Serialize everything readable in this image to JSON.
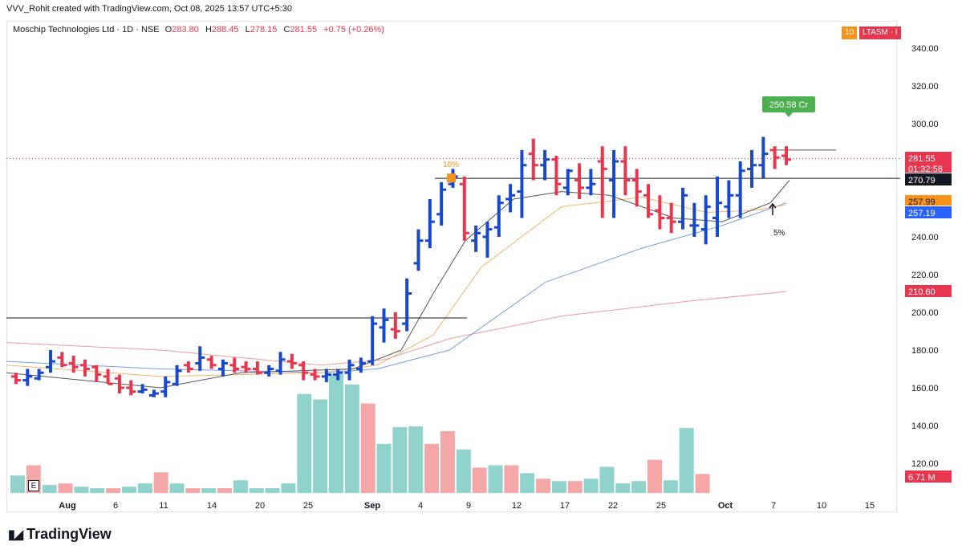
{
  "header": {
    "credit": "VVV_Rohit created with TradingView.com, Oct 08, 2025 13:57 UTC+5:30"
  },
  "legend": {
    "symbol": "Moschip Technologies Ltd · 1D · NSE",
    "o_label": "O",
    "o": "283.80",
    "h_label": "H",
    "h": "288.45",
    "l_label": "L",
    "l": "278.15",
    "c_label": "C",
    "c": "281.55",
    "change": "+0.75 (+0.26%)"
  },
  "indicator_badges": [
    {
      "text": "10",
      "color": "#f7931a"
    },
    {
      "text": "LTASM - I",
      "color": "#e8364f"
    }
  ],
  "brand": "TradingView",
  "e_marker": "E",
  "colors": {
    "up": "#1848cc",
    "down": "#e8364f",
    "vol_up": "#8fd3cc",
    "vol_down": "#f5a6a6",
    "ema_short": "#555555",
    "ema_orange": "#f5b46b",
    "ema_blue": "#7a9ce6",
    "ema_red": "#f09a9a"
  },
  "chart_data": {
    "type": "ohlc",
    "y_ticks": [
      120,
      140,
      160,
      180,
      200,
      220,
      240,
      260,
      280,
      300,
      320,
      340
    ],
    "y_tick_labels": [
      "120.00",
      "140.00",
      "160.00",
      "180.00",
      "200.00",
      "220.00",
      "240.00",
      "260.00",
      "280.00",
      "300.00",
      "320.00",
      "340.00"
    ],
    "ylim": [
      112,
      350
    ],
    "x_labels": [
      {
        "text": "Aug",
        "bar": 3,
        "bold": true
      },
      {
        "text": "6",
        "bar": 6
      },
      {
        "text": "11",
        "bar": 9
      },
      {
        "text": "14",
        "bar": 12
      },
      {
        "text": "20",
        "bar": 15
      },
      {
        "text": "25",
        "bar": 18
      },
      {
        "text": "Sep",
        "bar": 22,
        "bold": true
      },
      {
        "text": "4",
        "bar": 25
      },
      {
        "text": "9",
        "bar": 28
      },
      {
        "text": "12",
        "bar": 31
      },
      {
        "text": "17",
        "bar": 34
      },
      {
        "text": "22",
        "bar": 37
      },
      {
        "text": "25",
        "bar": 40
      },
      {
        "text": "Oct",
        "bar": 44,
        "bold": true
      },
      {
        "text": "7",
        "bar": 47
      },
      {
        "text": "10",
        "bar": 50
      },
      {
        "text": "15",
        "bar": 53
      }
    ],
    "bars": [
      [
        166,
        168,
        162,
        164
      ],
      [
        164,
        170,
        161,
        166
      ],
      [
        165,
        170,
        164,
        168
      ],
      [
        171,
        180,
        168,
        174
      ],
      [
        176,
        179,
        171,
        172
      ],
      [
        173,
        177,
        168,
        171
      ],
      [
        172,
        175,
        166,
        170
      ],
      [
        171,
        172,
        163,
        167
      ],
      [
        166,
        170,
        162,
        162
      ],
      [
        165,
        167,
        157,
        160
      ],
      [
        160,
        164,
        156,
        158
      ],
      [
        158,
        162,
        157,
        159
      ],
      [
        156,
        159,
        155,
        157
      ],
      [
        158,
        166,
        155,
        163
      ],
      [
        162,
        172,
        161,
        169
      ],
      [
        172,
        174,
        168,
        170
      ],
      [
        173,
        182,
        169,
        176
      ],
      [
        175,
        177,
        170,
        172
      ],
      [
        170,
        175,
        166,
        173
      ],
      [
        172,
        176,
        168,
        170
      ],
      [
        171,
        174,
        168,
        170
      ],
      [
        170,
        174,
        167,
        168
      ],
      [
        168,
        172,
        166,
        170
      ],
      [
        169,
        179,
        167,
        175
      ],
      [
        174,
        178,
        170,
        173
      ],
      [
        172,
        174,
        164,
        168
      ],
      [
        167,
        170,
        164,
        166
      ],
      [
        166,
        170,
        163,
        167
      ],
      [
        167,
        170,
        164,
        168
      ],
      [
        168,
        175,
        164,
        172
      ],
      [
        170,
        176,
        168,
        173
      ],
      [
        174,
        198,
        172,
        194
      ],
      [
        192,
        202,
        184,
        196
      ],
      [
        191,
        200,
        186,
        190
      ],
      [
        194,
        218,
        190,
        210
      ],
      [
        226,
        244,
        222,
        238
      ],
      [
        238,
        260,
        234,
        248
      ],
      [
        252,
        269,
        246,
        265
      ],
      [
        268,
        276,
        266,
        272
      ],
      [
        268,
        272,
        238,
        242
      ],
      [
        238,
        246,
        232,
        242
      ],
      [
        240,
        248,
        229,
        244
      ],
      [
        245,
        262,
        240,
        258
      ],
      [
        260,
        268,
        253,
        262
      ],
      [
        264,
        286,
        250,
        278
      ],
      [
        284,
        292,
        270,
        278
      ],
      [
        278,
        286,
        270,
        281
      ],
      [
        281,
        283,
        262,
        268
      ],
      [
        266,
        276,
        262,
        275
      ],
      [
        270,
        279,
        260,
        266
      ],
      [
        266,
        276,
        262,
        268
      ],
      [
        280,
        288,
        250,
        276
      ],
      [
        270,
        286,
        250,
        280
      ],
      [
        280,
        288,
        262,
        270
      ],
      [
        270,
        276,
        256,
        264
      ],
      [
        262,
        268,
        250,
        252
      ],
      [
        254,
        262,
        244,
        250
      ],
      [
        250,
        258,
        242,
        248
      ],
      [
        248,
        266,
        244,
        262
      ],
      [
        246,
        258,
        240,
        246
      ],
      [
        244,
        262,
        236,
        256
      ],
      [
        250,
        272,
        240,
        258
      ],
      [
        256,
        270,
        250,
        262
      ],
      [
        262,
        280,
        250,
        275
      ],
      [
        276,
        286,
        266,
        278
      ],
      [
        278,
        293,
        271,
        284
      ],
      [
        286,
        288,
        276,
        282
      ],
      [
        283,
        288,
        278,
        281
      ]
    ]
  }
}
